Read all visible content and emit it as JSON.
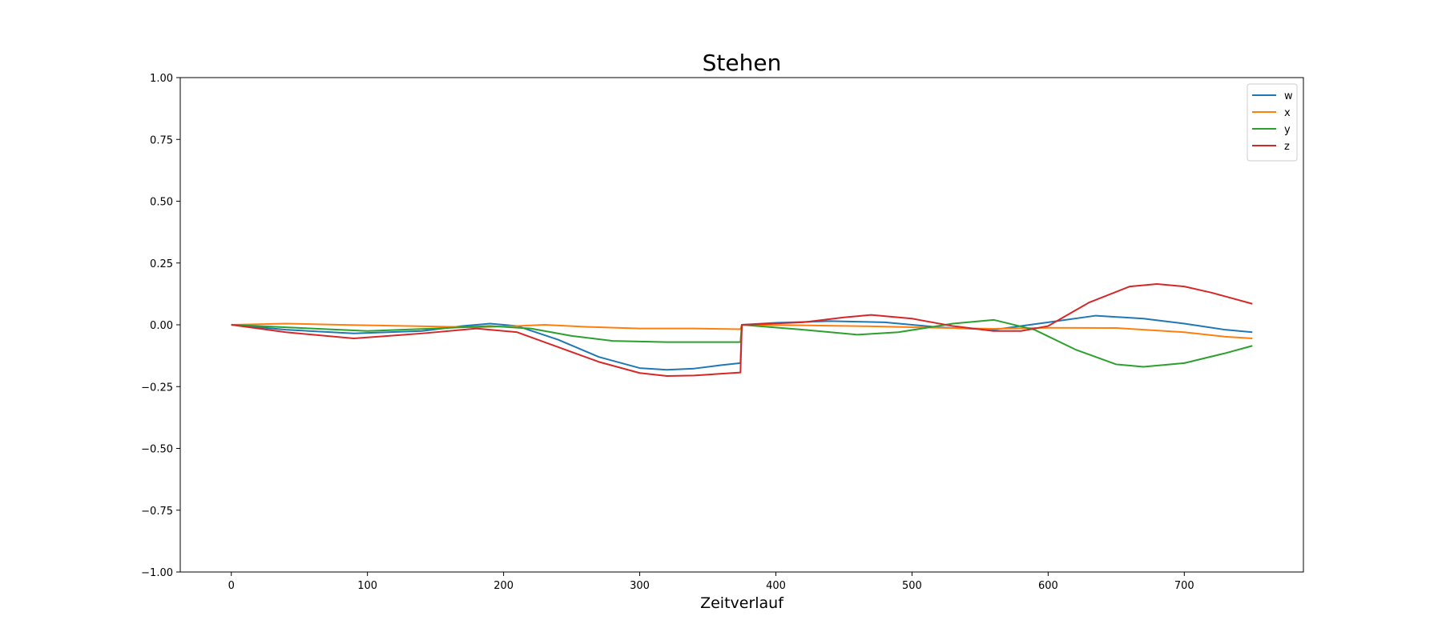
{
  "chart_data": {
    "type": "line",
    "title": "Stehen",
    "xlabel": "Zeitverlauf",
    "ylabel": "",
    "xlim": [
      -37.5,
      787.5
    ],
    "ylim": [
      -1.0,
      1.0
    ],
    "xticks": [
      0,
      100,
      200,
      300,
      400,
      500,
      600,
      700
    ],
    "yticks": [
      -1.0,
      -0.75,
      -0.5,
      -0.25,
      0.0,
      0.25,
      0.5,
      0.75,
      1.0
    ],
    "xtick_labels": [
      "0",
      "100",
      "200",
      "300",
      "400",
      "500",
      "600",
      "700"
    ],
    "ytick_labels": [
      "−1.00",
      "−0.75",
      "−0.50",
      "−0.25",
      "0.00",
      "0.25",
      "0.50",
      "0.75",
      "1.00"
    ],
    "grid": false,
    "legend_position": "top-right",
    "series": [
      {
        "name": "w",
        "color": "#1f77b4",
        "x": [
          0,
          40,
          90,
          140,
          170,
          190,
          210,
          240,
          270,
          300,
          320,
          340,
          360,
          374,
          375,
          400,
          440,
          480,
          520,
          560,
          600,
          635,
          670,
          700,
          730,
          750
        ],
        "values": [
          0,
          -0.02,
          -0.035,
          -0.025,
          -0.005,
          0.005,
          -0.005,
          -0.06,
          -0.13,
          -0.175,
          -0.182,
          -0.177,
          -0.163,
          -0.155,
          0,
          0.008,
          0.015,
          0.01,
          -0.01,
          -0.02,
          0.01,
          0.037,
          0.025,
          0.005,
          -0.02,
          -0.03
        ]
      },
      {
        "name": "x",
        "color": "#ff7f0e",
        "x": [
          0,
          40,
          80,
          130,
          180,
          210,
          230,
          260,
          300,
          340,
          374,
          375,
          420,
          470,
          520,
          560,
          600,
          650,
          700,
          730,
          750
        ],
        "values": [
          0,
          0.005,
          0.0,
          -0.005,
          -0.01,
          -0.005,
          0.0,
          -0.008,
          -0.015,
          -0.015,
          -0.018,
          0,
          -0.002,
          -0.006,
          -0.012,
          -0.016,
          -0.012,
          -0.013,
          -0.03,
          -0.048,
          -0.055
        ]
      },
      {
        "name": "y",
        "color": "#2ca02c",
        "x": [
          0,
          40,
          100,
          150,
          190,
          220,
          250,
          280,
          320,
          374,
          375,
          420,
          460,
          490,
          530,
          560,
          590,
          620,
          650,
          670,
          700,
          730,
          750
        ],
        "values": [
          0,
          -0.01,
          -0.025,
          -0.015,
          -0.005,
          -0.015,
          -0.045,
          -0.065,
          -0.07,
          -0.07,
          0,
          -0.02,
          -0.04,
          -0.03,
          0.005,
          0.02,
          -0.02,
          -0.1,
          -0.16,
          -0.17,
          -0.155,
          -0.115,
          -0.085
        ]
      },
      {
        "name": "z",
        "color": "#d62728",
        "x": [
          0,
          40,
          90,
          140,
          180,
          210,
          240,
          270,
          300,
          320,
          340,
          374,
          375,
          420,
          450,
          470,
          500,
          530,
          560,
          580,
          600,
          630,
          660,
          680,
          700,
          720,
          750
        ],
        "values": [
          0,
          -0.03,
          -0.055,
          -0.035,
          -0.015,
          -0.03,
          -0.09,
          -0.15,
          -0.195,
          -0.207,
          -0.205,
          -0.193,
          0,
          0.01,
          0.03,
          0.04,
          0.025,
          -0.005,
          -0.025,
          -0.025,
          -0.005,
          0.09,
          0.155,
          0.165,
          0.155,
          0.13,
          0.085
        ]
      }
    ]
  }
}
